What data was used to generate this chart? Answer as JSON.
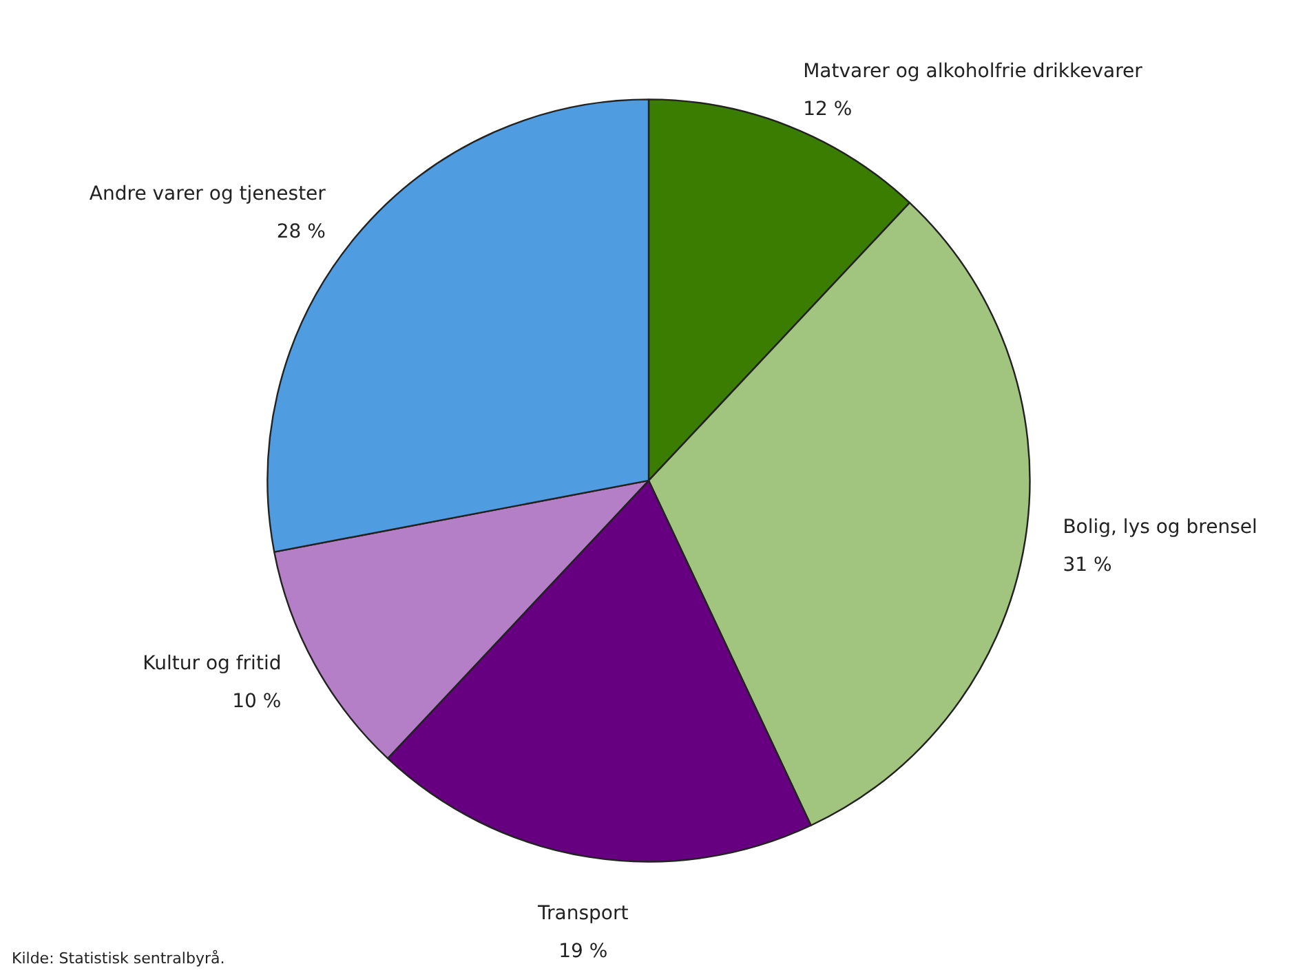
{
  "chart_data": {
    "type": "pie",
    "categories": [
      "Matvarer og alkoholfrie drikkevarer",
      "Bolig, lys og brensel",
      "Transport",
      "Kultur og fritid",
      "Andre varer og tjenester"
    ],
    "values": [
      12,
      31,
      19,
      10,
      28
    ],
    "colors": [
      "#3a7d00",
      "#a1c47f",
      "#660080",
      "#b57fc8",
      "#4f9de0"
    ],
    "value_labels": [
      "12 %",
      "31 %",
      "19 %",
      "10 %",
      "28 %"
    ],
    "annotations": [
      "Kilde: Statistisk sentralbyrå."
    ]
  }
}
